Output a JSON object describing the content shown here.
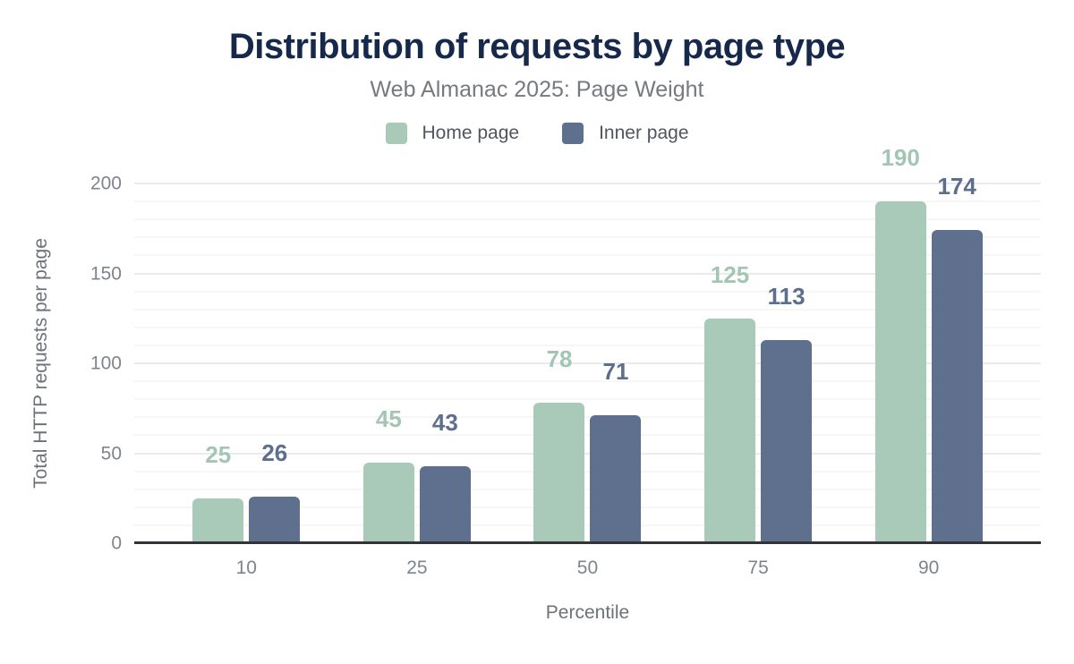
{
  "chart_data": {
    "type": "bar",
    "title": "Distribution of requests by page type",
    "subtitle": "Web Almanac 2025: Page Weight",
    "categories": [
      "10",
      "25",
      "50",
      "75",
      "90"
    ],
    "series": [
      {
        "name": "Home page",
        "color": "#a9cab9",
        "label_color": "#a3c6b4",
        "values": [
          25,
          45,
          78,
          125,
          190
        ]
      },
      {
        "name": "Inner page",
        "color": "#5e708e",
        "label_color": "#5d6f8d",
        "values": [
          26,
          43,
          71,
          113,
          174
        ]
      }
    ],
    "xlabel": "Percentile",
    "ylabel": "Total HTTP requests per page",
    "ylim": [
      0,
      200
    ],
    "yticks": [
      0,
      50,
      100,
      150,
      200
    ],
    "minor_grid_step": 10,
    "major_grid_step": 50,
    "grid": "on",
    "legend_position": "top",
    "value_labels": "above-bars",
    "theme": {
      "title_color": "#16294b",
      "subtitle_color": "#76797e",
      "legend_text_color": "#50565e",
      "tick_color": "#7f848c",
      "axis_label_color": "#6d727a",
      "axis_line_color": "#323437",
      "grid_minor_color": "#f6f6f7",
      "grid_major_color": "#ebebed",
      "background": "#ffffff"
    }
  }
}
